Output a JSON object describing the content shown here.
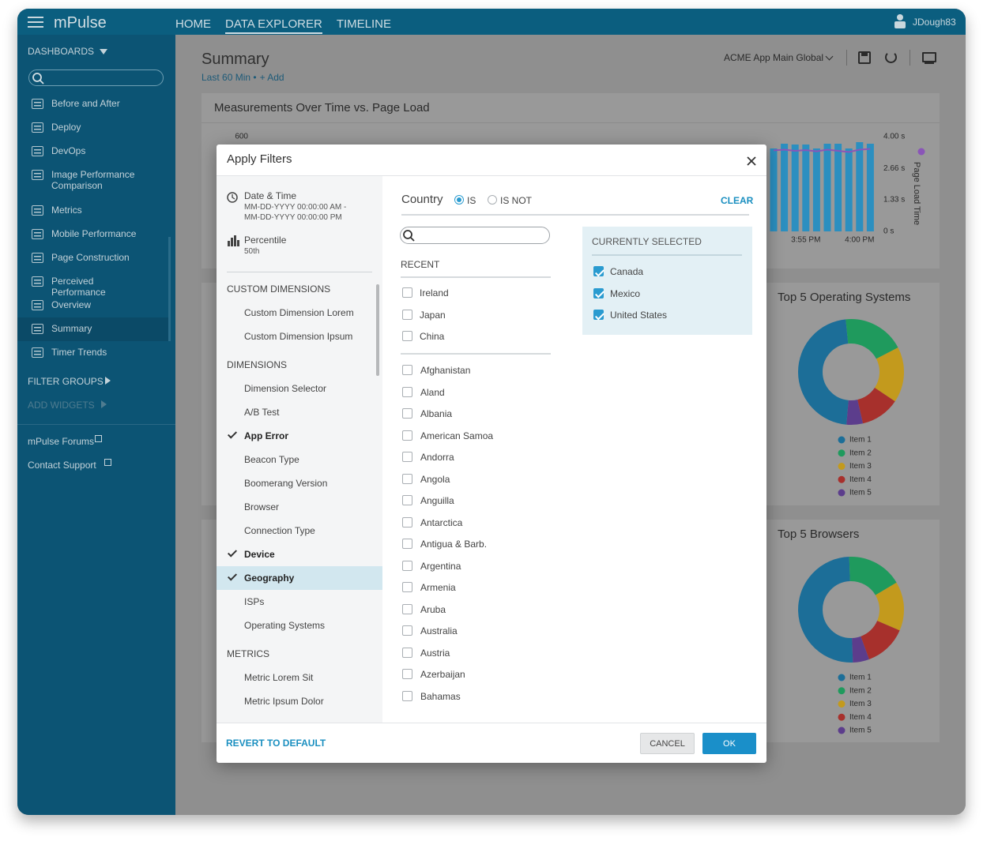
{
  "app": {
    "logo": "mPulse",
    "nav": [
      {
        "label": "HOME",
        "active": false
      },
      {
        "label": "DATA EXPLORER",
        "active": true
      },
      {
        "label": "TIMELINE",
        "active": false
      }
    ],
    "user": "JDough83"
  },
  "sidebar": {
    "dashboards_heading": "DASHBOARDS",
    "dashboards": [
      {
        "label": "Before and After",
        "active": false
      },
      {
        "label": "Deploy",
        "active": false
      },
      {
        "label": "DevOps",
        "active": false
      },
      {
        "label": "Image Performance Comparison",
        "active": false
      },
      {
        "label": "Metrics",
        "active": false
      },
      {
        "label": "Mobile Performance",
        "active": false
      },
      {
        "label": "Page Construction",
        "active": false
      },
      {
        "label": "Perceived Performance",
        "active": false
      },
      {
        "label": "Overview",
        "active": false
      },
      {
        "label": "Summary",
        "active": true
      },
      {
        "label": "Timer Trends",
        "active": false
      }
    ],
    "filter_groups": "FILTER GROUPS",
    "add_widgets": "ADD WIDGETS",
    "links": [
      "mPulse Forums",
      "Contact Support"
    ]
  },
  "header": {
    "title": "Summary",
    "time_range": "Last 60 Min •",
    "add": "+ Add",
    "app_selector": "ACME App Main Global"
  },
  "measurements_chart": {
    "type": "bar-line",
    "title": "Measurements Over Time vs. Page Load",
    "categories": [
      null,
      null,
      null,
      "3:55 PM",
      null,
      null,
      null,
      null,
      "4:00 PM",
      null
    ],
    "series": [
      {
        "type": "bar",
        "color": "#2b8fc0",
        "values": [
          525,
          555,
          550,
          550,
          525,
          555,
          555,
          525,
          565,
          555
        ]
      },
      {
        "type": "line",
        "name": "Page Load Time",
        "color": "#8a55b8",
        "axis": "y2",
        "values": [
          3.42,
          3.45,
          3.4,
          3.43,
          3.38,
          3.45,
          3.4,
          3.35,
          3.45,
          3.48
        ]
      }
    ],
    "ylim": [
      0,
      600
    ],
    "yticks": [
      600
    ],
    "y2lim": [
      0,
      4
    ],
    "y2ticks": [
      {
        "value": 4,
        "label": "4.00 s"
      },
      {
        "value": 2.66,
        "label": "2.66 s"
      },
      {
        "value": 1.33,
        "label": "1.33 s"
      },
      {
        "value": 0,
        "label": "0 s"
      }
    ]
  },
  "os_chart": {
    "type": "donut",
    "title": "Top 5 Operating Systems",
    "categories": [
      "Item 1",
      "Item 2",
      "Item 3",
      "Item 4",
      "Item 5"
    ],
    "values": [
      47,
      19,
      17,
      12,
      5
    ],
    "colors": [
      "#1c6e98",
      "#1f9a5d",
      "#c39a1d",
      "#a7302c",
      "#5c3d8c"
    ]
  },
  "browser_chart": {
    "type": "donut",
    "title": "Top 5 Browsers",
    "categories": [
      "Item 1",
      "Item 2",
      "Item 3",
      "Item 4",
      "Item 5"
    ],
    "values": [
      50,
      17,
      15,
      13,
      5
    ],
    "colors": [
      "#1c6e98",
      "#1f9a5d",
      "#c39a1d",
      "#a7302c",
      "#5c3d8c"
    ]
  },
  "modal": {
    "title": "Apply Filters",
    "date_time": {
      "label": "Date & Time",
      "start": "MM-DD-YYYY 00:00:00 AM -",
      "end": "MM-DD-YYYY 00:00:00 PM"
    },
    "percentile": {
      "label": "Percentile",
      "value": "50th"
    },
    "groups": [
      {
        "heading": "CUSTOM DIMENSIONS",
        "items": [
          {
            "label": "Custom Dimension Lorem",
            "checked": false,
            "selected": false
          },
          {
            "label": "Custom Dimension Ipsum",
            "checked": false,
            "selected": false
          }
        ]
      },
      {
        "heading": "DIMENSIONS",
        "items": [
          {
            "label": "Dimension Selector",
            "checked": false,
            "selected": false
          },
          {
            "label": "A/B Test",
            "checked": false,
            "selected": false
          },
          {
            "label": "App Error",
            "checked": true,
            "selected": false
          },
          {
            "label": "Beacon Type",
            "checked": false,
            "selected": false
          },
          {
            "label": "Boomerang Version",
            "checked": false,
            "selected": false
          },
          {
            "label": "Browser",
            "checked": false,
            "selected": false
          },
          {
            "label": "Connection Type",
            "checked": false,
            "selected": false
          },
          {
            "label": "Device",
            "checked": true,
            "selected": false
          },
          {
            "label": "Geography",
            "checked": true,
            "selected": true
          },
          {
            "label": "ISPs",
            "checked": false,
            "selected": false
          },
          {
            "label": "Operating Systems",
            "checked": false,
            "selected": false
          }
        ]
      },
      {
        "heading": "METRICS",
        "items": [
          {
            "label": "Metric Lorem Sit",
            "checked": false,
            "selected": false
          },
          {
            "label": "Metric Ipsum Dolor",
            "checked": false,
            "selected": false
          }
        ]
      }
    ],
    "field": "Country",
    "operators": [
      {
        "label": "IS",
        "selected": true
      },
      {
        "label": "IS NOT",
        "selected": false
      }
    ],
    "clear": "CLEAR",
    "recent_heading": "RECENT",
    "recent": [
      "Ireland",
      "Japan",
      "China"
    ],
    "countries": [
      "Afghanistan",
      "Aland",
      "Albania",
      "American Samoa",
      "Andorra",
      "Angola",
      "Anguilla",
      "Antarctica",
      "Antigua & Barb.",
      "Argentina",
      "Armenia",
      "Aruba",
      "Australia",
      "Austria",
      "Azerbaijan",
      "Bahamas"
    ],
    "selected_heading": "CURRENTLY SELECTED",
    "selected": [
      "Canada",
      "Mexico",
      "United States"
    ],
    "revert": "REVERT TO DEFAULT",
    "cancel": "CANCEL",
    "ok": "OK"
  }
}
